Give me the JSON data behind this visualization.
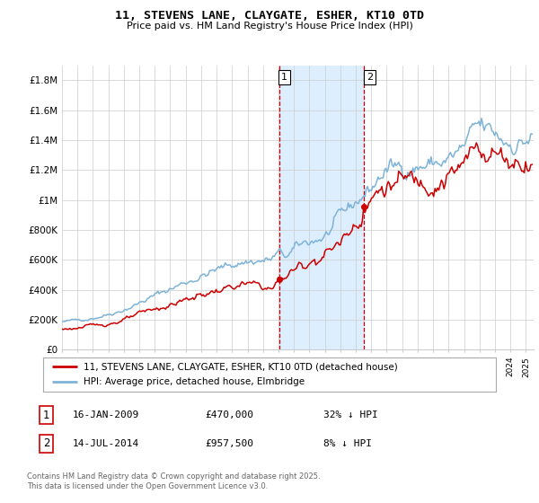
{
  "title": "11, STEVENS LANE, CLAYGATE, ESHER, KT10 0TD",
  "subtitle": "Price paid vs. HM Land Registry's House Price Index (HPI)",
  "footnote": "Contains HM Land Registry data © Crown copyright and database right 2025.\nThis data is licensed under the Open Government Licence v3.0.",
  "legend_line1": "11, STEVENS LANE, CLAYGATE, ESHER, KT10 0TD (detached house)",
  "legend_line2": "HPI: Average price, detached house, Elmbridge",
  "transaction1_label": "1",
  "transaction1_date": "16-JAN-2009",
  "transaction1_price": "£470,000",
  "transaction1_hpi": "32% ↓ HPI",
  "transaction2_label": "2",
  "transaction2_date": "14-JUL-2014",
  "transaction2_price": "£957,500",
  "transaction2_hpi": "8% ↓ HPI",
  "red_color": "#cc0000",
  "blue_color": "#7eb3d8",
  "shaded_color": "#ddeeff",
  "grid_color": "#cccccc",
  "background_color": "#ffffff",
  "ylim": [
    0,
    1900000
  ],
  "yticks": [
    0,
    200000,
    400000,
    600000,
    800000,
    1000000,
    1200000,
    1400000,
    1600000,
    1800000
  ],
  "ytick_labels": [
    "£0",
    "£200K",
    "£400K",
    "£600K",
    "£800K",
    "£1M",
    "£1.2M",
    "£1.4M",
    "£1.6M",
    "£1.8M"
  ],
  "transaction1_year": 2009.04,
  "transaction1_value": 470000,
  "transaction2_year": 2014.54,
  "transaction2_value": 957500,
  "vline1_year": 2009.04,
  "vline2_year": 2014.54,
  "xlim_start": 1995.0,
  "xlim_end": 2025.5
}
